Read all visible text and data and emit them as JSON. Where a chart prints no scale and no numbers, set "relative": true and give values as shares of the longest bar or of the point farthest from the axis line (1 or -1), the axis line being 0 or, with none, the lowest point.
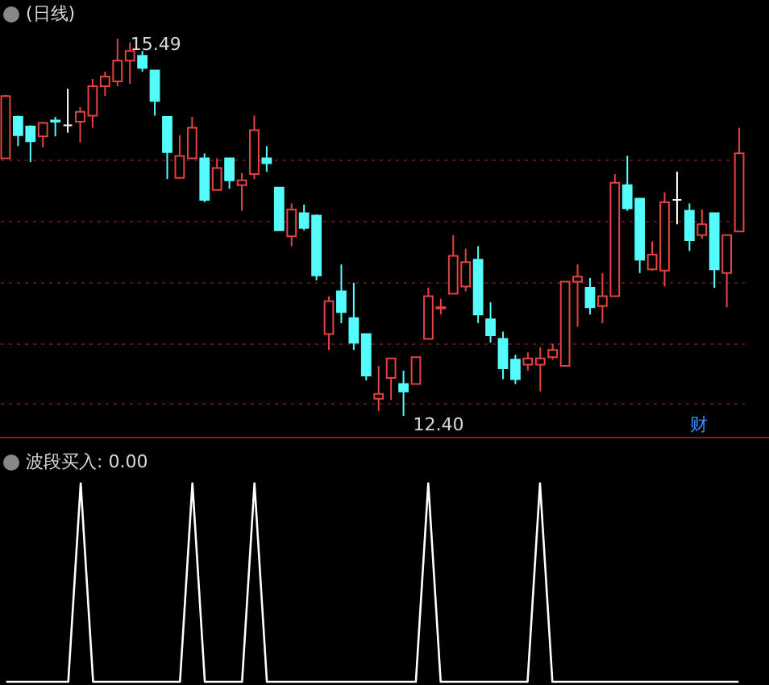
{
  "chart_data": [
    {
      "type": "candlestick",
      "title": "(日线)",
      "categories": [
        null,
        null,
        null,
        null,
        null,
        null,
        null,
        null,
        null,
        null,
        null,
        null,
        null,
        null,
        null,
        null,
        null,
        null,
        null,
        null,
        null,
        null,
        null,
        null,
        null,
        null,
        null,
        null,
        null,
        null,
        null,
        null,
        null,
        null,
        null,
        null,
        null,
        null,
        null,
        null,
        null,
        null,
        null,
        null,
        null,
        null,
        null,
        null,
        null,
        null,
        null,
        null,
        null,
        null,
        null,
        null,
        null,
        null,
        null,
        null
      ],
      "ohlc": [
        [
          14.51,
          15.03,
          14.51,
          15.02
        ],
        [
          14.85,
          14.86,
          14.61,
          14.7
        ],
        [
          14.77,
          14.78,
          14.48,
          14.65
        ],
        [
          14.69,
          14.81,
          14.6,
          14.8
        ],
        [
          14.82,
          14.85,
          14.69,
          14.81
        ],
        [
          14.78,
          15.08,
          14.72,
          14.78
        ],
        [
          14.81,
          14.93,
          14.64,
          14.89
        ],
        [
          14.86,
          15.16,
          14.76,
          15.1
        ],
        [
          15.1,
          15.22,
          15.02,
          15.18
        ],
        [
          15.14,
          15.49,
          15.1,
          15.31
        ],
        [
          15.31,
          15.46,
          15.12,
          15.39
        ],
        [
          15.35,
          15.39,
          15.22,
          15.25
        ],
        [
          15.23,
          15.23,
          14.86,
          14.98
        ],
        [
          14.85,
          14.85,
          14.34,
          14.56
        ],
        [
          14.35,
          14.7,
          14.35,
          14.53
        ],
        [
          14.51,
          14.85,
          14.51,
          14.76
        ],
        [
          14.51,
          14.55,
          14.15,
          14.17
        ],
        [
          14.25,
          14.51,
          14.25,
          14.43
        ],
        [
          14.51,
          14.51,
          14.26,
          14.33
        ],
        [
          14.29,
          14.39,
          14.08,
          14.33
        ],
        [
          14.38,
          14.86,
          14.34,
          14.74
        ],
        [
          14.51,
          14.61,
          14.4,
          14.47
        ],
        [
          14.27,
          14.27,
          13.92,
          13.92
        ],
        [
          13.87,
          14.14,
          13.79,
          14.09
        ],
        [
          14.06,
          14.13,
          13.92,
          13.94
        ],
        [
          14.04,
          14.05,
          13.51,
          13.55
        ],
        [
          13.07,
          13.38,
          12.94,
          13.34
        ],
        [
          13.42,
          13.64,
          13.16,
          13.25
        ],
        [
          13.2,
          13.49,
          12.94,
          13.0
        ],
        [
          13.07,
          13.07,
          12.69,
          12.73
        ],
        [
          12.54,
          12.81,
          12.44,
          12.58
        ],
        [
          12.71,
          12.87,
          12.53,
          12.87
        ],
        [
          12.66,
          12.77,
          12.4,
          12.6
        ],
        [
          12.66,
          12.88,
          12.66,
          12.88
        ],
        [
          13.03,
          13.45,
          13.03,
          13.38
        ],
        [
          13.28,
          13.36,
          13.23,
          13.29
        ],
        [
          13.4,
          13.88,
          13.4,
          13.71
        ],
        [
          13.46,
          13.77,
          13.42,
          13.66
        ],
        [
          13.68,
          13.79,
          13.16,
          13.23
        ],
        [
          13.19,
          13.33,
          13.0,
          13.06
        ],
        [
          13.03,
          13.09,
          12.7,
          12.79
        ],
        [
          12.86,
          12.9,
          12.66,
          12.7
        ],
        [
          12.82,
          12.92,
          12.77,
          12.87
        ],
        [
          12.82,
          12.96,
          12.6,
          12.87
        ],
        [
          12.88,
          12.99,
          12.86,
          12.94
        ],
        [
          12.81,
          13.5,
          12.81,
          13.5
        ],
        [
          13.5,
          13.64,
          13.13,
          13.54
        ],
        [
          13.45,
          13.53,
          13.23,
          13.29
        ],
        [
          13.3,
          13.57,
          13.16,
          13.38
        ],
        [
          13.38,
          14.38,
          13.38,
          14.31
        ],
        [
          14.29,
          14.53,
          14.08,
          14.1
        ],
        [
          14.18,
          14.18,
          13.57,
          13.68
        ],
        [
          13.6,
          13.83,
          13.59,
          13.72
        ],
        [
          13.59,
          14.23,
          13.46,
          14.15
        ],
        [
          14.17,
          14.4,
          13.97,
          14.17
        ],
        [
          14.08,
          14.14,
          13.75,
          13.84
        ],
        [
          13.88,
          14.09,
          13.85,
          13.97
        ],
        [
          14.06,
          14.06,
          13.45,
          13.6
        ],
        [
          13.57,
          13.88,
          13.29,
          13.88
        ],
        [
          13.91,
          14.76,
          13.91,
          14.55
        ]
      ],
      "colors": [
        "#e64141",
        "#54fcfc",
        "#54fcfc",
        "#e64141",
        "#54fcfc",
        "#ffffff",
        "#e64141",
        "#e64141",
        "#e64141",
        "#e64141",
        "#e64141",
        "#54fcfc",
        "#54fcfc",
        "#54fcfc",
        "#e64141",
        "#e64141",
        "#54fcfc",
        "#e64141",
        "#54fcfc",
        "#e64141",
        "#e64141",
        "#54fcfc",
        "#54fcfc",
        "#e64141",
        "#54fcfc",
        "#54fcfc",
        "#e64141",
        "#54fcfc",
        "#54fcfc",
        "#54fcfc",
        "#e64141",
        "#e64141",
        "#54fcfc",
        "#e64141",
        "#e64141",
        "#e64141",
        "#e64141",
        "#e64141",
        "#54fcfc",
        "#54fcfc",
        "#54fcfc",
        "#54fcfc",
        "#e64141",
        "#e64141",
        "#e64141",
        "#e64141",
        "#e64141",
        "#54fcfc",
        "#e64141",
        "#e64141",
        "#54fcfc",
        "#54fcfc",
        "#e64141",
        "#e64141",
        "#ffffff",
        "#54fcfc",
        "#e64141",
        "#54fcfc",
        "#e64141",
        "#e64141"
      ],
      "yticks": [
        {
          "value": 12.5,
          "label": null
        },
        {
          "value": 13,
          "label": null
        },
        {
          "value": 13.5,
          "label": null
        },
        {
          "value": 14,
          "label": null
        },
        {
          "value": 14.5,
          "label": null
        }
      ],
      "grid": "y",
      "annotations": [
        "15.49",
        "12.40",
        "财"
      ]
    },
    {
      "type": "line",
      "title": "波段买入: 0.00",
      "categories": [
        null,
        null,
        null,
        null,
        null,
        null,
        null,
        null,
        null,
        null,
        null,
        null,
        null,
        null,
        null,
        null,
        null,
        null,
        null,
        null,
        null,
        null,
        null,
        null,
        null,
        null,
        null,
        null,
        null,
        null,
        null,
        null,
        null,
        null,
        null,
        null,
        null,
        null,
        null,
        null,
        null,
        null,
        null,
        null,
        null,
        null,
        null,
        null,
        null,
        null,
        null,
        null,
        null,
        null,
        null,
        null,
        null,
        null,
        null,
        null
      ],
      "values": [
        0,
        0,
        0,
        0,
        0,
        0,
        1,
        0,
        0,
        0,
        0,
        0,
        0,
        0,
        0,
        1,
        0,
        0,
        0,
        0,
        1,
        0,
        0,
        0,
        0,
        0,
        0,
        0,
        0,
        0,
        0,
        0,
        0,
        0,
        1,
        0,
        0,
        0,
        0,
        0,
        0,
        0,
        0,
        1,
        0,
        0,
        0,
        0,
        0,
        0,
        0,
        0,
        0,
        0,
        0,
        0,
        0,
        0,
        0,
        0
      ],
      "color": "#ffffff",
      "relative": true
    }
  ]
}
